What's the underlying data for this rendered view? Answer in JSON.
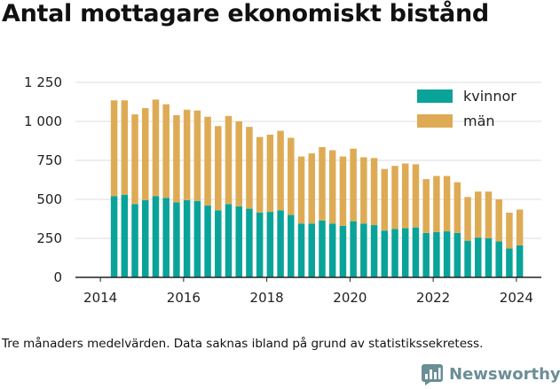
{
  "title": "Antal mottagare ekonomiskt bistånd",
  "footnote": "Tre månaders medelvärden. Data saknas ibland på grund av statistikssekretess.",
  "brand": {
    "name": "Newsworthy",
    "icon": "bar-chart-logo-icon",
    "color": "#6b8e96"
  },
  "colors": {
    "kvinnor": "#0aa39a",
    "man": "#deab55",
    "grid": "#dddddd",
    "axis": "#222222"
  },
  "chart_data": {
    "type": "bar",
    "stacked": true,
    "title": "Antal mottagare ekonomiskt bistånd",
    "xlabel": "",
    "ylabel": "",
    "ylim": [
      0,
      1250
    ],
    "yticks": [
      0,
      250,
      500,
      750,
      1000,
      1250
    ],
    "ytick_labels": [
      "0",
      "250",
      "500",
      "750",
      "1 000",
      "1 250"
    ],
    "xlim": [
      2013.4,
      2024.6
    ],
    "xticks": [
      2014,
      2016,
      2018,
      2020,
      2022,
      2024
    ],
    "xtick_labels": [
      "2014",
      "2016",
      "2018",
      "2020",
      "2022",
      "2024"
    ],
    "grid": true,
    "legend": "top-right",
    "x": [
      2014.33,
      2014.58,
      2014.83,
      2015.08,
      2015.33,
      2015.58,
      2015.83,
      2016.08,
      2016.33,
      2016.58,
      2016.83,
      2017.08,
      2017.33,
      2017.58,
      2017.83,
      2018.08,
      2018.33,
      2018.58,
      2018.83,
      2019.08,
      2019.33,
      2019.58,
      2019.83,
      2020.08,
      2020.33,
      2020.58,
      2020.83,
      2021.08,
      2021.33,
      2021.58,
      2021.83,
      2022.08,
      2022.33,
      2022.58,
      2022.83,
      2023.08,
      2023.33,
      2023.58,
      2023.83,
      2024.08
    ],
    "series": [
      {
        "name": "kvinnor",
        "values": [
          520,
          530,
          470,
          495,
          520,
          510,
          480,
          495,
          490,
          460,
          430,
          470,
          455,
          440,
          415,
          420,
          430,
          400,
          345,
          345,
          365,
          345,
          330,
          360,
          345,
          335,
          300,
          310,
          315,
          320,
          285,
          290,
          295,
          285,
          235,
          255,
          250,
          230,
          185,
          205
        ]
      },
      {
        "name": "män",
        "values": [
          615,
          605,
          575,
          590,
          620,
          600,
          560,
          580,
          580,
          570,
          540,
          565,
          545,
          525,
          485,
          495,
          510,
          495,
          430,
          450,
          470,
          470,
          445,
          465,
          425,
          430,
          395,
          405,
          415,
          405,
          345,
          360,
          355,
          325,
          280,
          295,
          300,
          270,
          230,
          230
        ]
      }
    ]
  }
}
